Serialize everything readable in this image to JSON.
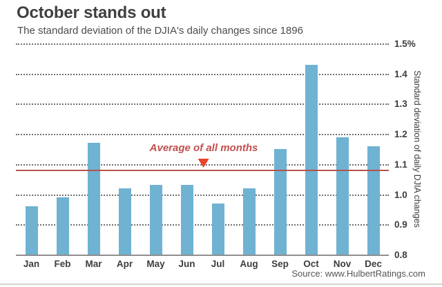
{
  "chart_data": {
    "type": "bar",
    "title": "October stands out",
    "subtitle": "The standard deviation of the DJIA's daily changes since 1896",
    "categories": [
      "Jan",
      "Feb",
      "Mar",
      "Apr",
      "May",
      "Jun",
      "Jul",
      "Aug",
      "Sep",
      "Oct",
      "Nov",
      "Dec"
    ],
    "values": [
      0.96,
      0.99,
      1.17,
      1.02,
      1.03,
      1.03,
      0.97,
      1.02,
      1.15,
      1.43,
      1.19,
      1.16
    ],
    "xlabel": "",
    "ylabel": "Standard deviation of daily DJIA changes",
    "ylim": [
      0.8,
      1.5
    ],
    "yticks": [
      0.8,
      0.9,
      1.0,
      1.1,
      1.2,
      1.3,
      1.4,
      1.5
    ],
    "ytick_labels": [
      "0.8",
      "0.9",
      "1.0",
      "1.1",
      "1.2",
      "1.3",
      "1.4",
      "1.5%"
    ],
    "grid": "horizontal dotted, legend none, y-axis on right",
    "average_line": {
      "value": 1.08,
      "label": "Average of all months"
    },
    "colors": {
      "bar": "#6fb2d2",
      "average_line": "#b4544c",
      "annotation_text": "#c0504d",
      "arrow": "#e8452c"
    }
  },
  "footer": {
    "source": "Source: www.HulbertRatings.com"
  }
}
